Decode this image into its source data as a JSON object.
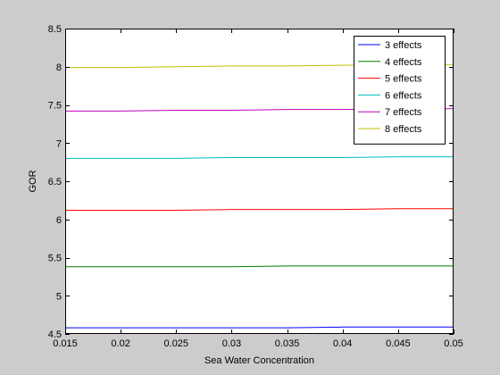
{
  "chart_data": {
    "type": "line",
    "title": "",
    "xlabel": "Sea Water Concentration",
    "ylabel": "GOR",
    "xlim": [
      0.015,
      0.05
    ],
    "ylim": [
      4.5,
      8.5
    ],
    "xticks": [
      0.015,
      0.02,
      0.025,
      0.03,
      0.035,
      0.04,
      0.045,
      0.05
    ],
    "xtick_labels": [
      "0.015",
      "0.02",
      "0.025",
      "0.03",
      "0.035",
      "0.04",
      "0.045",
      "0.05"
    ],
    "yticks": [
      4.5,
      5,
      5.5,
      6,
      6.5,
      7,
      7.5,
      8,
      8.5
    ],
    "ytick_labels": [
      "4.5",
      "5",
      "5.5",
      "6",
      "6.5",
      "7",
      "7.5",
      "8",
      "8.5"
    ],
    "grid": false,
    "legend_position": "top-right",
    "x": [
      0.015,
      0.02,
      0.025,
      0.03,
      0.035,
      0.04,
      0.045,
      0.05
    ],
    "series": [
      {
        "name": "3 effects",
        "color": "#0000ff",
        "values": [
          4.58,
          4.58,
          4.58,
          4.58,
          4.58,
          4.59,
          4.59,
          4.59
        ]
      },
      {
        "name": "4 effects",
        "color": "#008000",
        "values": [
          5.38,
          5.38,
          5.38,
          5.38,
          5.39,
          5.39,
          5.39,
          5.39
        ]
      },
      {
        "name": "5 effects",
        "color": "#ff0000",
        "values": [
          6.12,
          6.12,
          6.12,
          6.13,
          6.13,
          6.13,
          6.14,
          6.14
        ]
      },
      {
        "name": "6 effects",
        "color": "#00bfbf",
        "values": [
          6.8,
          6.8,
          6.8,
          6.81,
          6.81,
          6.81,
          6.82,
          6.82
        ]
      },
      {
        "name": "7 effects",
        "color": "#bf00bf",
        "values": [
          7.42,
          7.42,
          7.43,
          7.43,
          7.44,
          7.44,
          7.45,
          7.45
        ]
      },
      {
        "name": "8 effects",
        "color": "#bfbf00",
        "values": [
          7.99,
          7.99,
          8.0,
          8.01,
          8.01,
          8.02,
          8.02,
          8.03
        ]
      }
    ]
  }
}
